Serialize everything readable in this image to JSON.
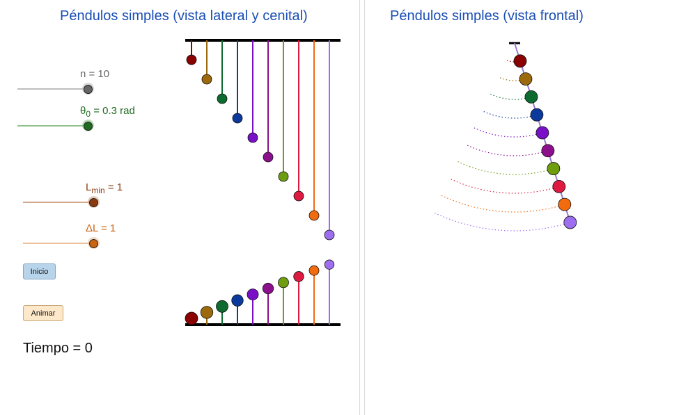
{
  "left": {
    "title": "Péndulos simples (vista lateral y cenital)",
    "sliders": {
      "n": {
        "label": "n = 10",
        "value": 10,
        "color": "#666666",
        "track": "#bdbdbd"
      },
      "theta0": {
        "symbol": "θ",
        "sub": "0",
        "rest": " = 0.3 rad",
        "value": 0.3,
        "color": "#1f6b1f",
        "track": "#8fc18f"
      },
      "lmin": {
        "symbol": "L",
        "sub": "min",
        "rest": " = 1",
        "value": 1,
        "color": "#8b3a0f",
        "track": "#d4a88a"
      },
      "dl": {
        "label": "ΔL = 1",
        "value": 1,
        "color": "#c8650f",
        "track": "#eec09a"
      }
    },
    "buttons": {
      "inicio": "Inicio",
      "animar": "Animar"
    },
    "time": "Tiempo = 0"
  },
  "right": {
    "title": "Péndulos simples (vista frontal)"
  },
  "pendulum_colors": [
    "#8b0000",
    "#9c6a0c",
    "#0e6b2f",
    "#0b3a9c",
    "#7a0fc8",
    "#8c0f8c",
    "#6e9e0f",
    "#dd1a3f",
    "#f26b0f",
    "#9d6ff0"
  ]
}
